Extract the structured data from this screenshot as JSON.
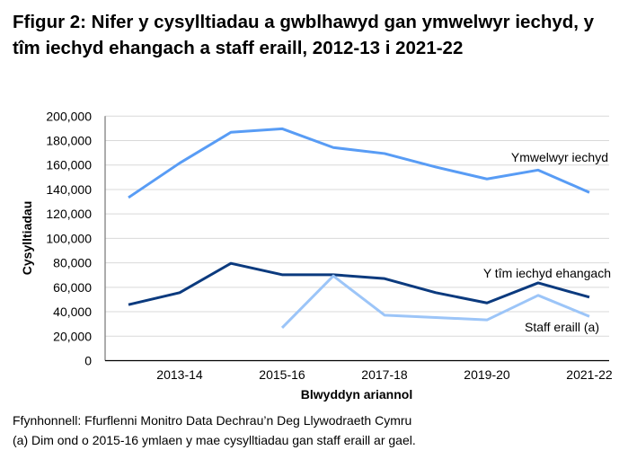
{
  "title": "Ffigur 2: Nifer y cysylltiadau a gwblhawyd gan ymwelwyr iechyd, y tîm iechyd ehangach a staff eraill, 2012-13 i 2021-22",
  "chart_data": {
    "type": "line",
    "title": "Ffigur 2: Nifer y cysylltiadau a gwblhawyd gan ymwelwyr iechyd, y tîm iechyd ehangach a staff eraill, 2012-13 i 2021-22",
    "xlabel": "Blwyddyn ariannol",
    "ylabel": "Cysylltiadau",
    "ylim": [
      0,
      200000
    ],
    "yticks": [
      "0",
      "20,000",
      "40,000",
      "60,000",
      "80,000",
      "100,000",
      "120,000",
      "140,000",
      "160,000",
      "180,000",
      "200,000"
    ],
    "categories": [
      "2012-13",
      "2013-14",
      "2014-15",
      "2015-16",
      "2016-17",
      "2017-18",
      "2018-19",
      "2019-20",
      "2020-21",
      "2021-22"
    ],
    "xtick_labels": [
      "2013-14",
      "2015-16",
      "2017-18",
      "2019-20",
      "2021-22"
    ],
    "grid": true,
    "series": [
      {
        "name": "Ymwelwyr iechyd",
        "color": "#589cf5",
        "values": [
          133400,
          161600,
          186800,
          189700,
          174300,
          169400,
          158400,
          148600,
          155900,
          137600
        ]
      },
      {
        "name": "Y tîm iechyd ehangach",
        "color": "#0b3a7e",
        "values": [
          45800,
          55600,
          79600,
          70300,
          70300,
          67100,
          55600,
          47200,
          63600,
          51900
        ]
      },
      {
        "name": "Staff eraill (a)",
        "color": "#9cc5f8",
        "values": [
          null,
          null,
          null,
          26900,
          69300,
          37200,
          35300,
          33300,
          53400,
          36200
        ]
      }
    ]
  },
  "footnotes": {
    "source": "Ffynhonnell: Ffurflenni Monitro Data Dechrau’n Deg Llywodraeth Cymru",
    "note": "(a) Dim ond o 2015-16 ymlaen y mae cysylltiadau gan staff eraill ar gael."
  }
}
